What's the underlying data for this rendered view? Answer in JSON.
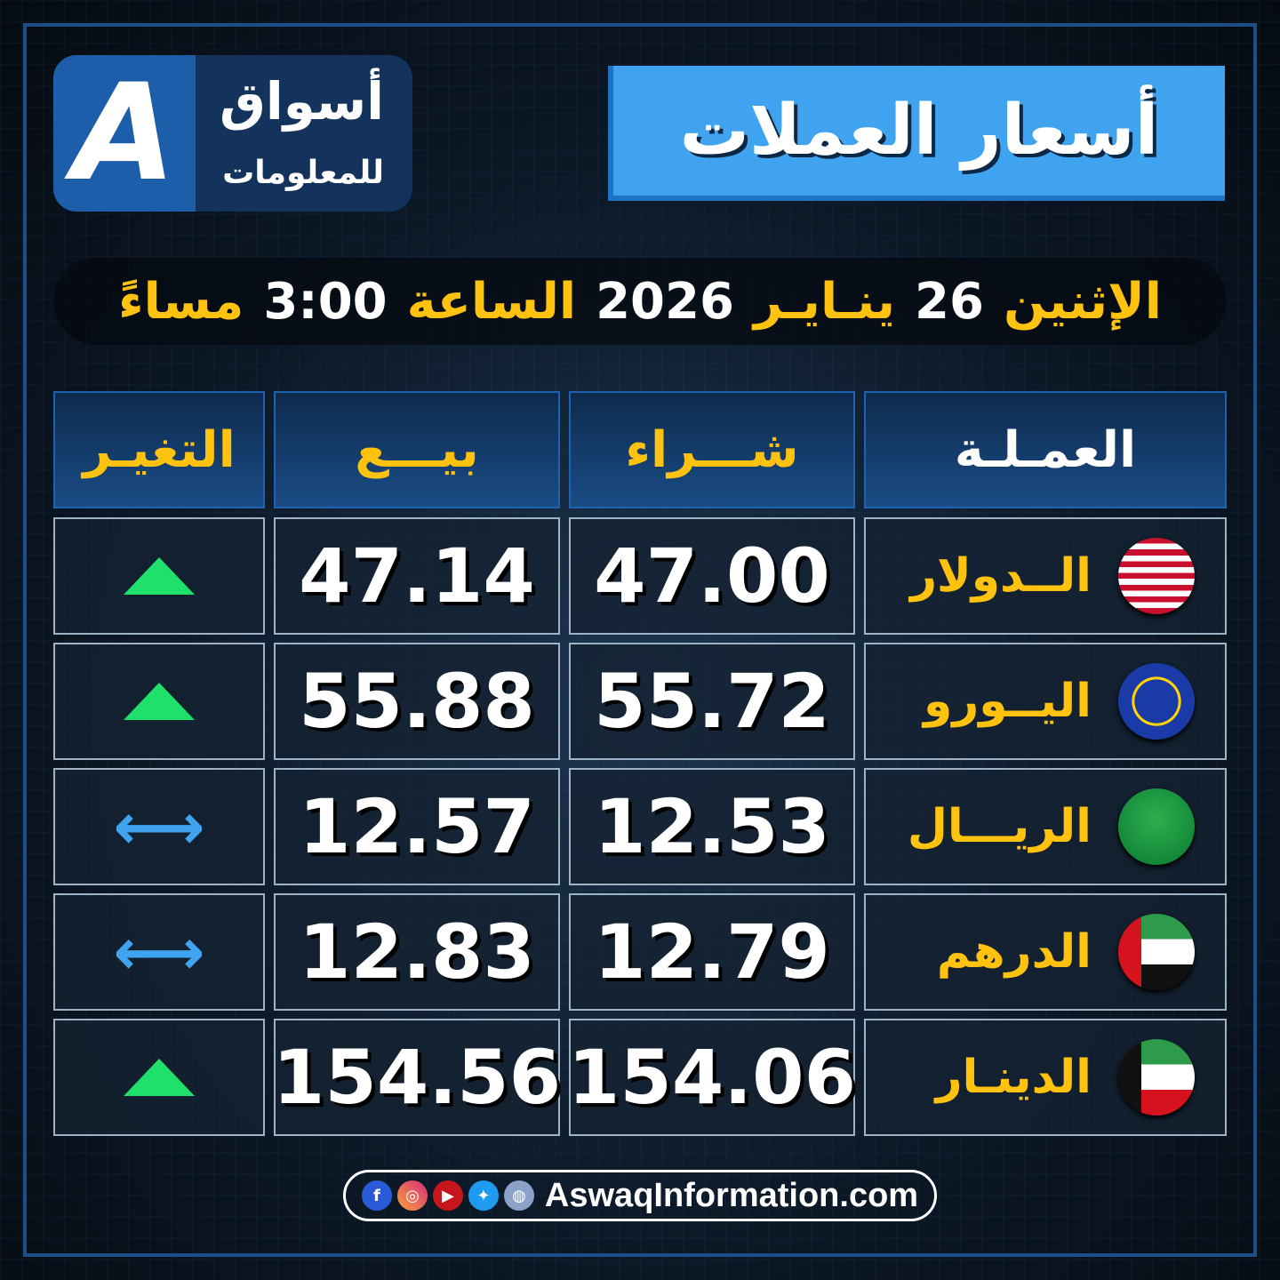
{
  "logo": {
    "line1": "أسواق",
    "line2": "للمعلومات",
    "mark": "A"
  },
  "title": "أسعار العملات",
  "date": {
    "day": "الإثنين",
    "date_num": "26",
    "month": "ينـايـر",
    "year": "2026",
    "hour_label": "الساعة",
    "time": "3:00",
    "period": "مساءً"
  },
  "headers": {
    "currency": "العمـلـة",
    "buy": "شـــراء",
    "sell": "بيـــع",
    "change": "التغيـر"
  },
  "rows": [
    {
      "currency": "الــدولار",
      "flag": "us-flag",
      "buy": "47.00",
      "sell": "47.14",
      "change": "up"
    },
    {
      "currency": "اليــورو",
      "flag": "eu-flag",
      "buy": "55.72",
      "sell": "55.88",
      "change": "up"
    },
    {
      "currency": "الريـــال",
      "flag": "saudi-flag",
      "buy": "12.53",
      "sell": "12.57",
      "change": "unchanged"
    },
    {
      "currency": "الدرهم",
      "flag": "uae-flag",
      "buy": "12.79",
      "sell": "12.83",
      "change": "unchanged"
    },
    {
      "currency": "الدينـار",
      "flag": "kuwait-flag",
      "buy": "154.06",
      "sell": "154.56",
      "change": "up"
    }
  ],
  "footer": {
    "website": "AswaqInformation.com",
    "icons": [
      "facebook-icon",
      "instagram-icon",
      "youtube-icon",
      "twitter-icon",
      "globe-icon"
    ]
  },
  "colors": {
    "accent": "#ffc20e",
    "title_bg": "#3fa3ef",
    "up": "#1ee06a",
    "unchanged": "#3fa3ef"
  }
}
